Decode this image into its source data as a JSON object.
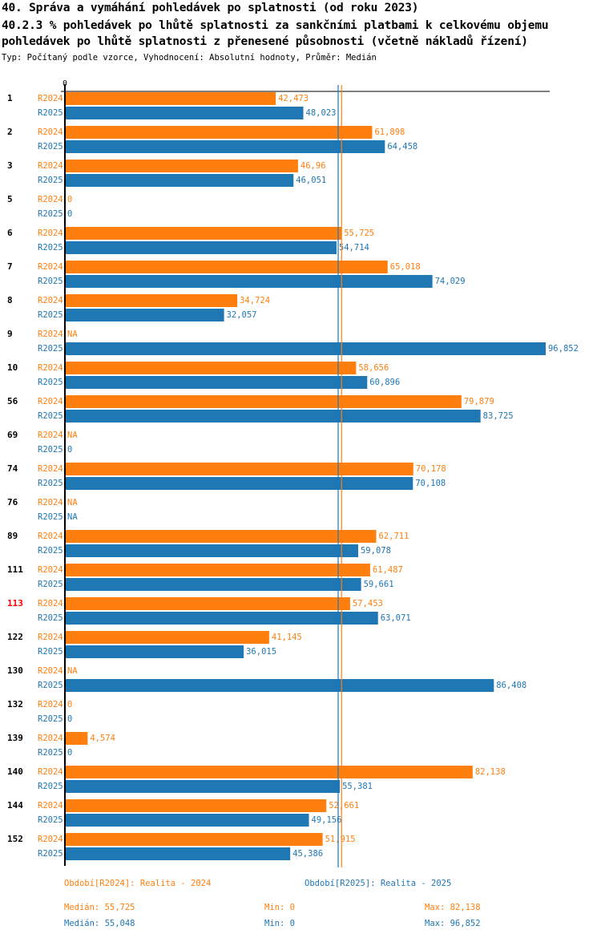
{
  "title_line1": "40. Správa a vymáhání pohledávek po splatnosti (od roku 2023)",
  "title_line2": "40.2.3 % pohledávek po lhůtě splatnosti za sankčními platbami k celkovému objemu",
  "title_line3": "pohledávek po lhůtě splatnosti z přenesené působnosti (včetně nákladů řízení)",
  "subtitle": "Typ: Počítaný podle vzorce, Vyhodnocení: Absolutní hodnoty, Průměr: Medián",
  "colors": {
    "R2024": "#ff7f0e",
    "R2025": "#1f77b4",
    "highlight": "#ff0000",
    "axis": "#000000"
  },
  "chart_data": {
    "type": "bar",
    "orientation": "horizontal",
    "title": "40.2.3 % pohledávek po lhůtě splatnosti za sankčními platbami k celkovému objemu pohledávek po lhůtě splatnosti z přenesené působnosti (včetně nákladů řízení)",
    "axis_zero_label": "0",
    "xlim": [
      0,
      97
    ],
    "highlighted_category": "113",
    "categories": [
      "1",
      "2",
      "3",
      "5",
      "6",
      "7",
      "8",
      "9",
      "10",
      "56",
      "69",
      "74",
      "76",
      "89",
      "111",
      "113",
      "122",
      "130",
      "132",
      "139",
      "140",
      "144",
      "152"
    ],
    "series": [
      {
        "name": "R2024",
        "values": [
          42.473,
          61.898,
          46.96,
          0,
          55.725,
          65.018,
          34.724,
          null,
          58.656,
          79.879,
          null,
          70.178,
          null,
          62.711,
          61.487,
          57.453,
          41.145,
          null,
          0,
          4.574,
          82.138,
          52.661,
          51.915
        ],
        "labels": [
          "42,473",
          "61,898",
          "46,96",
          "0",
          "55,725",
          "65,018",
          "34,724",
          "NA",
          "58,656",
          "79,879",
          "NA",
          "70,178",
          "NA",
          "62,711",
          "61,487",
          "57,453",
          "41,145",
          "NA",
          "0",
          "4,574",
          "82,138",
          "52,661",
          "51,915"
        ],
        "median": 55.725
      },
      {
        "name": "R2025",
        "values": [
          48.023,
          64.458,
          46.051,
          0,
          54.714,
          74.029,
          32.057,
          96.852,
          60.896,
          83.725,
          0,
          70.108,
          null,
          59.078,
          59.661,
          63.071,
          36.015,
          86.408,
          0,
          0,
          55.381,
          49.156,
          45.386
        ],
        "labels": [
          "48,023",
          "64,458",
          "46,051",
          "0",
          "54,714",
          "74,029",
          "32,057",
          "96,852",
          "60,896",
          "83,725",
          "0",
          "70,108",
          "NA",
          "59,078",
          "59,661",
          "63,071",
          "36,015",
          "86,408",
          "0",
          "0",
          "55,381",
          "49,156",
          "45,386"
        ],
        "median": 55.048
      }
    ]
  },
  "legend": {
    "r2024": "Období[R2024]: Realita - 2024",
    "r2025": "Období[R2025]: Realita - 2025"
  },
  "stats": {
    "r2024": {
      "median": "Medián: 55,725",
      "min": "Min: 0",
      "max": "Max: 82,138"
    },
    "r2025": {
      "median": "Medián: 55,048",
      "min": "Min: 0",
      "max": "Max: 96,852"
    }
  }
}
